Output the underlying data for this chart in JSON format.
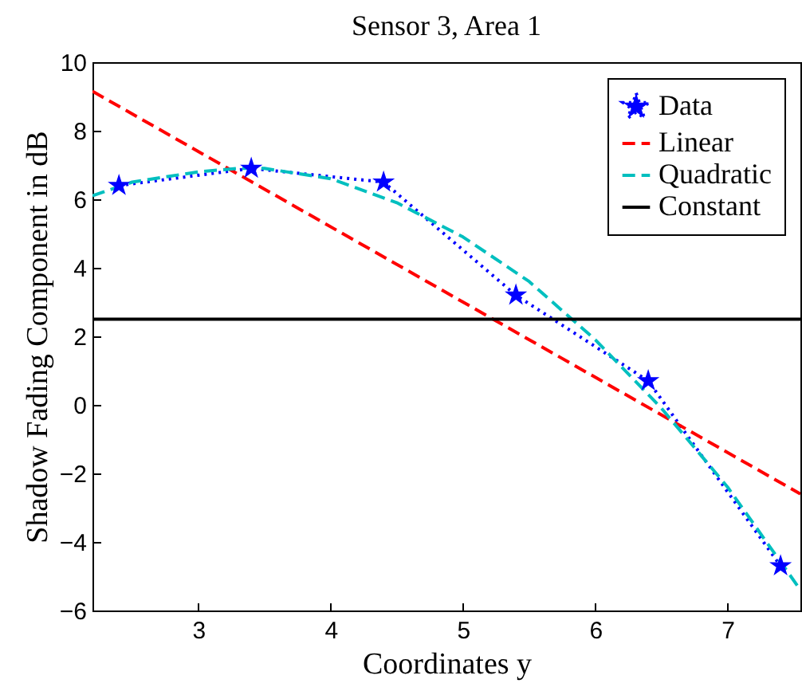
{
  "chart_data": {
    "type": "line",
    "title": "Sensor 3, Area 1",
    "xlabel": "Coordinates y",
    "ylabel": "Shadow Fading Component in dB",
    "xlim": [
      2.2,
      7.55
    ],
    "ylim": [
      -6,
      10
    ],
    "xticks": [
      3,
      4,
      5,
      6,
      7
    ],
    "yticks": [
      -6,
      -4,
      -2,
      0,
      2,
      4,
      6,
      8,
      10
    ],
    "grid": false,
    "legend": "top right",
    "series": [
      {
        "name": "Data",
        "color": "#0000ff",
        "marker": "star",
        "line_style": "dotted",
        "x": [
          2.4,
          3.4,
          4.4,
          5.4,
          6.4,
          7.4
        ],
        "values": [
          6.4,
          6.9,
          6.5,
          3.2,
          0.7,
          -4.7
        ]
      },
      {
        "name": "Linear",
        "color": "#ff0000",
        "marker": "none",
        "line_style": "dashed",
        "x": [
          2.2,
          7.55
        ],
        "values": [
          9.15,
          -2.6
        ]
      },
      {
        "name": "Quadratic",
        "color": "#00bfbf",
        "marker": "none",
        "line_style": "dashed",
        "x": [
          2.2,
          2.5,
          3.0,
          3.3,
          3.5,
          4.0,
          4.5,
          5.0,
          5.5,
          6.0,
          6.5,
          7.0,
          7.55
        ],
        "values": [
          6.1,
          6.5,
          6.8,
          6.9,
          6.9,
          6.6,
          5.9,
          4.9,
          3.6,
          1.9,
          -0.1,
          -2.4,
          -5.4
        ]
      },
      {
        "name": "Constant",
        "color": "#000000",
        "marker": "none",
        "line_style": "solid",
        "x": [
          2.2,
          7.55
        ],
        "values": [
          2.5,
          2.5
        ]
      }
    ]
  }
}
